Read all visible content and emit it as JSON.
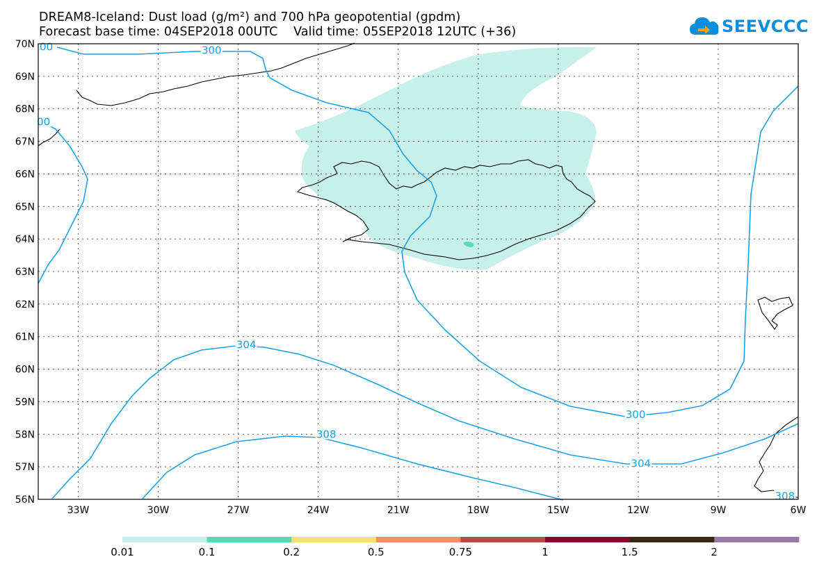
{
  "header": {
    "title_line1": "DREAM8-Iceland: Dust load (g/m²) and 700 hPa geopotential (gpdm)",
    "title_line2": "Forecast base time: 04SEP2018 00UTC    Valid time: 05SEP2018 12UTC (+36)"
  },
  "logo": {
    "text": "SEEVCCC",
    "icon": "cloud-icon",
    "color": "#0a8fdc"
  },
  "map": {
    "lat_labels": [
      "70N",
      "69N",
      "68N",
      "67N",
      "66N",
      "65N",
      "64N",
      "63N",
      "62N",
      "61N",
      "60N",
      "59N",
      "58N",
      "57N",
      "56N"
    ],
    "lon_labels": [
      "33W",
      "30W",
      "27W",
      "24W",
      "21W",
      "18W",
      "15W",
      "12W",
      "9W",
      "6W"
    ],
    "lat_range": [
      56,
      70
    ],
    "lon_range": [
      -34.5,
      -6
    ],
    "grid": "dotted",
    "contour_color": "#1ea0e6",
    "contour_labels": [
      {
        "text": "300",
        "lon": -28.0,
        "lat": 69.8
      },
      {
        "text": "00",
        "lon": -34.2,
        "lat": 69.9
      },
      {
        "text": "00",
        "lon": -34.3,
        "lat": 67.6
      },
      {
        "text": "304",
        "lon": -26.7,
        "lat": 60.75
      },
      {
        "text": "308",
        "lon": -23.7,
        "lat": 58.0
      },
      {
        "text": "300",
        "lon": -12.1,
        "lat": 58.6
      },
      {
        "text": "304",
        "lon": -11.9,
        "lat": 57.1
      },
      {
        "text": "308",
        "lon": -6.5,
        "lat": 56.1
      }
    ]
  },
  "legend": {
    "labels": [
      "0.01",
      "0.1",
      "0.2",
      "0.5",
      "0.75",
      "1",
      "1.5",
      "2"
    ],
    "colors": [
      "#c8f0ea",
      "#5ad9b4",
      "#f6e27a",
      "#e8916a",
      "#a85245",
      "#7a0f2c",
      "#3c2810",
      "#9a78a8"
    ]
  }
}
